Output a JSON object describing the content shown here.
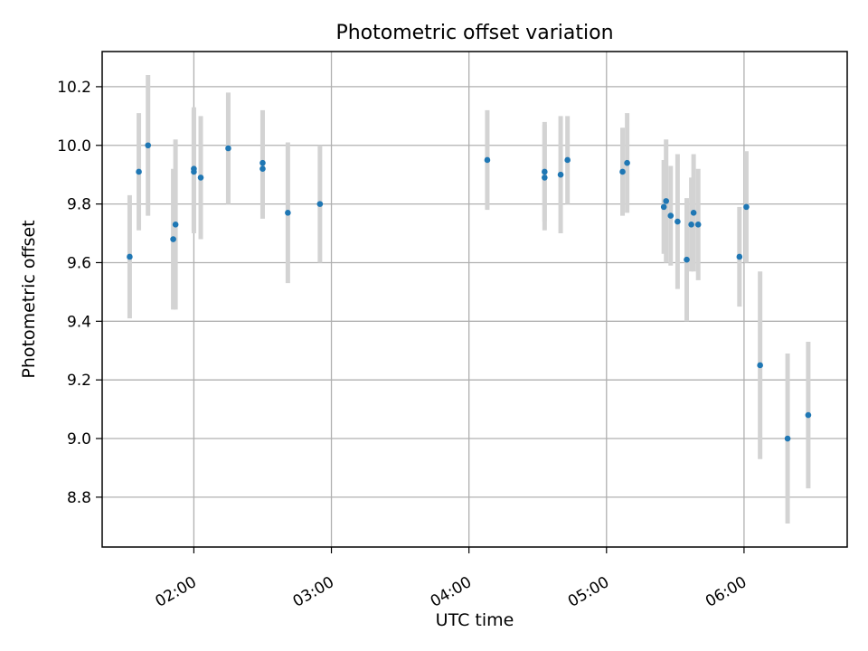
{
  "chart_data": {
    "type": "scatter",
    "title": "Photometric offset variation",
    "xlabel": "UTC time",
    "ylabel": "Photometric offset",
    "grid": true,
    "legend": "none",
    "xlim": [
      "01:20",
      "06:45"
    ],
    "ylim": [
      8.63,
      10.32
    ],
    "x_ticks": [
      "02:00",
      "03:00",
      "04:00",
      "05:00",
      "06:00"
    ],
    "y_ticks": [
      "8.8",
      "9.0",
      "9.2",
      "9.4",
      "9.6",
      "9.8",
      "10.0",
      "10.2"
    ],
    "colors": {
      "point": "#1f77b4",
      "errorbar": "#d3d3d3",
      "grid": "#b0b0b0"
    },
    "points": [
      {
        "x": "01:32",
        "y": 9.62,
        "err": 0.21
      },
      {
        "x": "01:36",
        "y": 9.91,
        "err": 0.2
      },
      {
        "x": "01:40",
        "y": 10.0,
        "err": 0.24
      },
      {
        "x": "01:51",
        "y": 9.68,
        "err": 0.24
      },
      {
        "x": "01:52",
        "y": 9.73,
        "err": 0.29
      },
      {
        "x": "02:00",
        "y": 9.92,
        "err": 0.21
      },
      {
        "x": "02:00",
        "y": 9.91,
        "err": 0.21
      },
      {
        "x": "02:03",
        "y": 9.89,
        "err": 0.21
      },
      {
        "x": "02:15",
        "y": 9.99,
        "err": 0.19
      },
      {
        "x": "02:30",
        "y": 9.94,
        "err": 0.18
      },
      {
        "x": "02:30",
        "y": 9.92,
        "err": 0.17
      },
      {
        "x": "02:41",
        "y": 9.77,
        "err": 0.24
      },
      {
        "x": "02:55",
        "y": 9.8,
        "err": 0.2
      },
      {
        "x": "04:08",
        "y": 9.95,
        "err": 0.17
      },
      {
        "x": "04:33",
        "y": 9.91,
        "err": 0.17
      },
      {
        "x": "04:33",
        "y": 9.89,
        "err": 0.18
      },
      {
        "x": "04:40",
        "y": 9.9,
        "err": 0.2
      },
      {
        "x": "04:43",
        "y": 9.95,
        "err": 0.15
      },
      {
        "x": "05:07",
        "y": 9.91,
        "err": 0.15
      },
      {
        "x": "05:09",
        "y": 9.94,
        "err": 0.17
      },
      {
        "x": "05:25",
        "y": 9.79,
        "err": 0.16
      },
      {
        "x": "05:26",
        "y": 9.81,
        "err": 0.21
      },
      {
        "x": "05:28",
        "y": 9.76,
        "err": 0.17
      },
      {
        "x": "05:31",
        "y": 9.74,
        "err": 0.23
      },
      {
        "x": "05:35",
        "y": 9.61,
        "err": 0.21
      },
      {
        "x": "05:37",
        "y": 9.73,
        "err": 0.16
      },
      {
        "x": "05:38",
        "y": 9.77,
        "err": 0.2
      },
      {
        "x": "05:40",
        "y": 9.73,
        "err": 0.19
      },
      {
        "x": "05:58",
        "y": 9.62,
        "err": 0.17
      },
      {
        "x": "06:01",
        "y": 9.79,
        "err": 0.19
      },
      {
        "x": "06:07",
        "y": 9.25,
        "err": 0.32
      },
      {
        "x": "06:19",
        "y": 9.0,
        "err": 0.29
      },
      {
        "x": "06:28",
        "y": 9.08,
        "err": 0.25
      }
    ]
  }
}
